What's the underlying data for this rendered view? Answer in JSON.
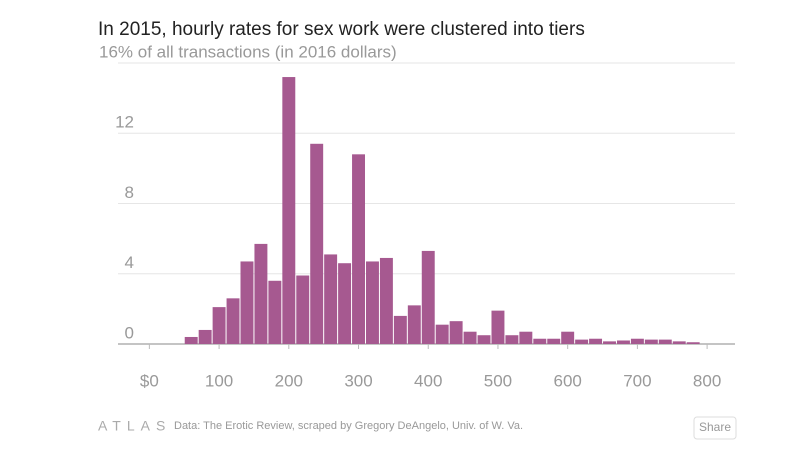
{
  "chart_data": {
    "type": "histogram",
    "title": "In 2015, hourly rates for sex work were clustered into tiers",
    "bins": [
      10,
      30,
      50,
      70,
      90,
      110,
      130,
      150,
      170,
      190,
      210,
      230,
      250,
      270,
      290,
      310,
      330,
      350,
      370,
      390,
      410,
      430,
      450,
      470,
      490,
      510,
      530,
      550,
      570,
      590,
      610,
      630,
      650,
      670,
      690,
      710,
      730,
      750,
      770,
      790
    ],
    "values": [
      0,
      0,
      0.4,
      0.8,
      2.1,
      2.6,
      4.7,
      5.7,
      3.6,
      15.2,
      3.9,
      11.4,
      5.1,
      4.6,
      10.8,
      4.7,
      4.9,
      1.6,
      2.2,
      5.3,
      1.1,
      1.3,
      0.7,
      0.5,
      1.9,
      0.5,
      0.7,
      0.3,
      0.3,
      0.7,
      0.25,
      0.3,
      0.15,
      0.2,
      0.3,
      0.25,
      0.25,
      0.15,
      0.1
    ],
    "color": "#a65990",
    "xlim": [
      -45,
      840
    ],
    "xticks": [
      {
        "value": 0,
        "label": "$0"
      },
      100,
      200,
      300,
      400,
      500,
      600,
      700,
      800
    ],
    "ylim": [
      0,
      16
    ],
    "yticks": [
      0,
      4,
      8,
      12,
      {
        "value": 16,
        "label": "16% of all transactions (in 2016 dollars)"
      }
    ],
    "grid": true
  },
  "footer": {
    "logo": "ATLAS",
    "source": "Data:  The Erotic Review, scraped by Gregory DeAngelo, Univ. of W. Va.",
    "button": "Share"
  }
}
